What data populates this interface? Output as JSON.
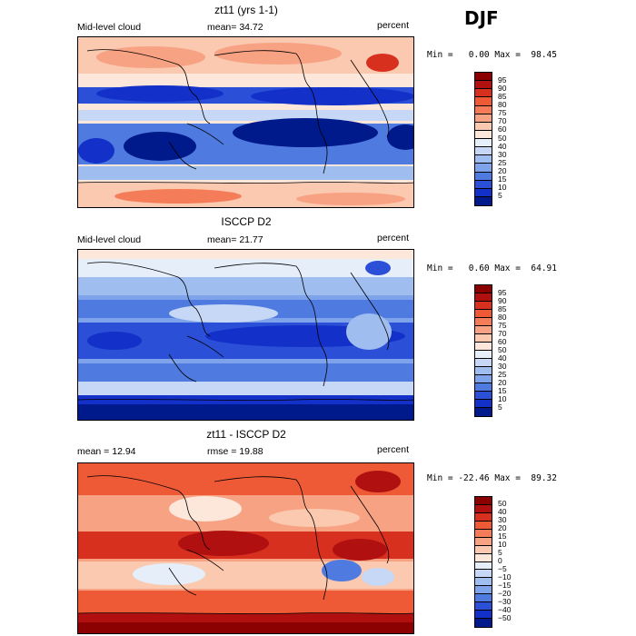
{
  "season": "DJF",
  "panels": [
    {
      "title": "zt11 (yrs 1-1)",
      "left_label": "Mid-level cloud",
      "mean_label": "mean=  34.72",
      "unit": "percent",
      "minmax": "Min =   0.00 Max =  98.45",
      "levels": [
        "95",
        "90",
        "85",
        "80",
        "75",
        "70",
        "60",
        "50",
        "40",
        "30",
        "25",
        "20",
        "15",
        "10",
        "5"
      ],
      "colors": [
        "#8b0000",
        "#b01010",
        "#d7301f",
        "#ee5a36",
        "#f47c58",
        "#f8a284",
        "#fbc8b0",
        "#fde6da",
        "#e6eefa",
        "#c6d8f5",
        "#9fbdee",
        "#7ea3ea",
        "#4f7ae0",
        "#2b4fd6",
        "#1330c8",
        "#001a8c"
      ]
    },
    {
      "title": "ISCCP D2",
      "left_label": "Mid-level cloud",
      "mean_label": "mean=  21.77",
      "unit": "percent",
      "minmax": "Min =   0.60 Max =  64.91",
      "levels": [
        "95",
        "90",
        "85",
        "80",
        "75",
        "70",
        "60",
        "50",
        "40",
        "30",
        "25",
        "20",
        "15",
        "10",
        "5"
      ],
      "colors": [
        "#8b0000",
        "#b01010",
        "#d7301f",
        "#ee5a36",
        "#f47c58",
        "#f8a284",
        "#fbc8b0",
        "#fde6da",
        "#e6eefa",
        "#c6d8f5",
        "#9fbdee",
        "#7ea3ea",
        "#4f7ae0",
        "#2b4fd6",
        "#1330c8",
        "#001a8c"
      ]
    },
    {
      "title": "zt11 - ISCCP D2",
      "left_label": "mean =  12.94",
      "mean_label": "rmse =  19.88",
      "unit": "percent",
      "minmax": "Min = -22.46 Max =  89.32",
      "levels": [
        "50",
        "40",
        "30",
        "20",
        "15",
        "10",
        "5",
        "0",
        "−5",
        "−10",
        "−15",
        "−20",
        "−30",
        "−40",
        "−50"
      ],
      "colors": [
        "#8b0000",
        "#b01010",
        "#d7301f",
        "#ee5a36",
        "#f47c58",
        "#f8a284",
        "#fbc8b0",
        "#fde6da",
        "#e6eefa",
        "#c6d8f5",
        "#9fbdee",
        "#7ea3ea",
        "#4f7ae0",
        "#2b4fd6",
        "#1330c8",
        "#001a8c"
      ]
    }
  ]
}
